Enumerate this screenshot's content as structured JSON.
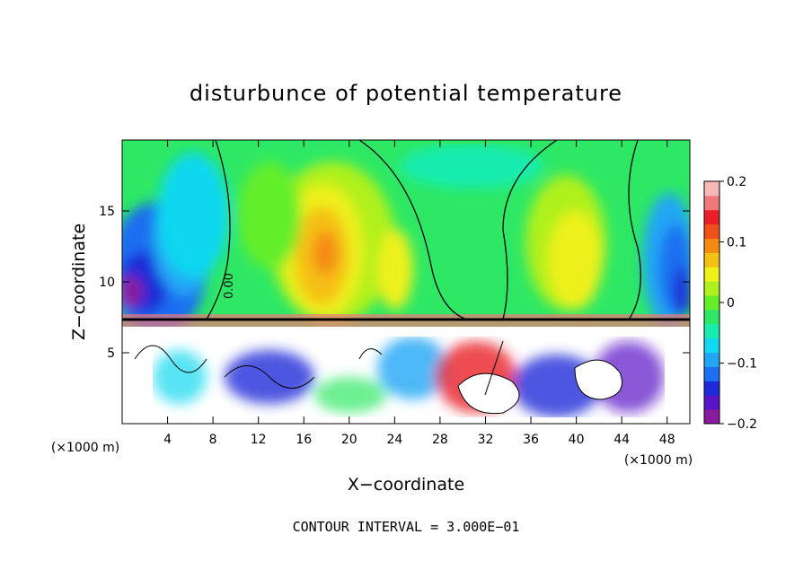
{
  "chart_data": {
    "type": "heatmap",
    "title": "disturbunce of potential temperature",
    "xlabel": "X−coordinate",
    "ylabel": "Z−coordinate",
    "x_unit": "(×1000 m)",
    "x_unit_right": "(×1000 m)",
    "footer": "CONTOUR INTERVAL = 3.000E−01",
    "xlim": [
      0,
      50
    ],
    "ylim": [
      0,
      20
    ],
    "xticks": [
      4,
      8,
      12,
      16,
      20,
      24,
      28,
      32,
      36,
      40,
      44,
      48
    ],
    "yticks": [
      5,
      10,
      15
    ],
    "colorbar": {
      "range": [
        -0.2,
        0.2
      ],
      "ticks": [
        0.2,
        0.1,
        0,
        -0.1,
        -0.2
      ],
      "tick_labels": [
        "0.2",
        "0.1",
        "0",
        "−0.1",
        "−0.2"
      ],
      "colors": [
        "#8a1a9e",
        "#5a14c8",
        "#1e2ad8",
        "#1e6ef0",
        "#22a6f5",
        "#10d8f0",
        "#18ecb0",
        "#2ee865",
        "#64ee2a",
        "#b0f01e",
        "#eef01a",
        "#f5c014",
        "#f58a12",
        "#f0501a",
        "#e81e28",
        "#f07878",
        "#f8b8b8"
      ]
    },
    "contour_label": "0.00",
    "grid": false,
    "legend": "colorbar at right"
  }
}
